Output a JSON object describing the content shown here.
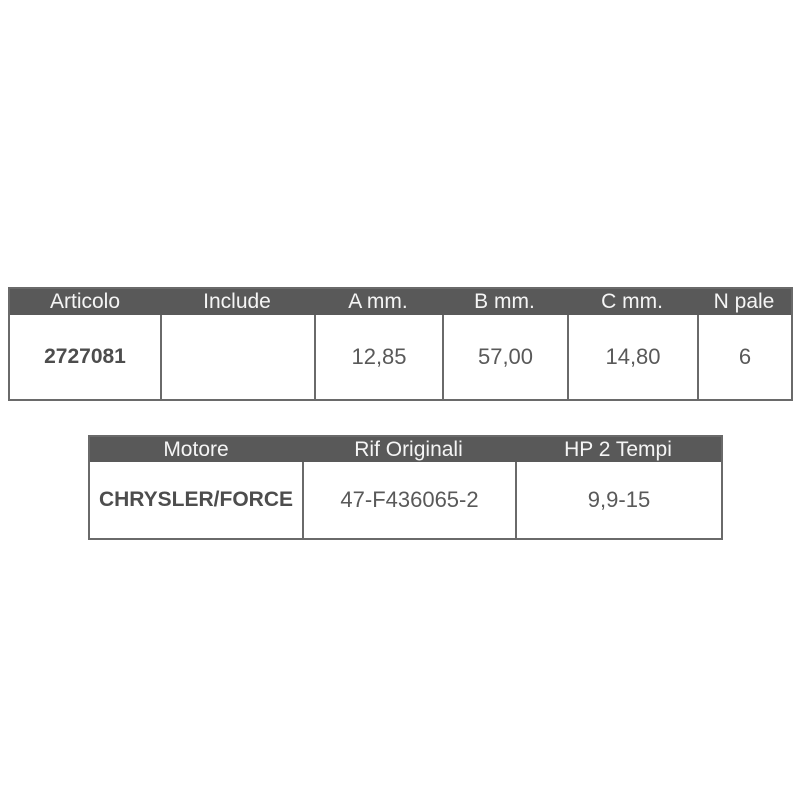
{
  "colors": {
    "page_background": "#ffffff",
    "header_background": "#595959",
    "header_text": "#f5f5f5",
    "body_text": "#595959",
    "bold_text": "#4d4d4d",
    "border": "#6a6a6a"
  },
  "spec_table": {
    "headers": [
      "Articolo",
      "Include",
      "A mm.",
      "B mm.",
      "C mm.",
      "N pale"
    ],
    "values": [
      "2727081",
      "",
      "12,85",
      "57,00",
      "14,80",
      "6"
    ]
  },
  "engine_table": {
    "headers": [
      "Motore",
      "Rif Originali",
      "HP 2 Tempi"
    ],
    "values": [
      "CHRYSLER/FORCE",
      "47-F436065-2",
      "9,9-15"
    ]
  }
}
